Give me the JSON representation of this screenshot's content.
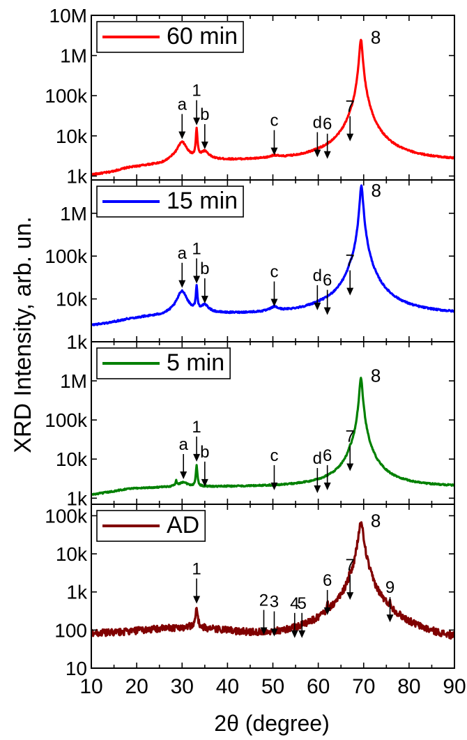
{
  "chart_data": [
    {
      "type": "line",
      "panel": "60 min",
      "legend": "60 min",
      "color": "#ff0000",
      "yscale": "log",
      "ylim": [
        800,
        10000000
      ],
      "xlim": [
        10,
        90
      ],
      "yticks": [
        {
          "v": 1000,
          "label": "1k"
        },
        {
          "v": 10000,
          "label": "10k"
        },
        {
          "v": 100000,
          "label": "100k"
        },
        {
          "v": 1000000,
          "label": "1M"
        },
        {
          "v": 10000000,
          "label": "10M"
        }
      ],
      "base": [
        [
          10,
          1000
        ],
        [
          14,
          1150
        ],
        [
          18,
          1500
        ],
        [
          22,
          1700
        ],
        [
          26,
          1850
        ],
        [
          28,
          2300
        ]
      ],
      "peaks": [
        {
          "x": 30.0,
          "h": 6800,
          "w": 1.1
        },
        {
          "x": 33.2,
          "h": 15000,
          "w": 0.15
        },
        {
          "x": 35.0,
          "h": 3800,
          "w": 1.0
        },
        {
          "x": 50.3,
          "h": 2700,
          "w": 1.0
        },
        {
          "x": 59.8,
          "h": 2400,
          "w": 1.2
        },
        {
          "x": 62.0,
          "h": 2200,
          "w": 0.15
        },
        {
          "x": 67.0,
          "h": 6000,
          "w": 0.3
        },
        {
          "x": 69.4,
          "h": 2500000,
          "w": 0.3
        }
      ],
      "annotations": [
        {
          "label": "a",
          "x": 30.0,
          "y": 6800
        },
        {
          "label": "1",
          "x": 33.2,
          "y": 15000
        },
        {
          "label": "b",
          "x": 35.0,
          "y": 3800
        },
        {
          "label": "c",
          "x": 50.3,
          "y": 2700
        },
        {
          "label": "d",
          "x": 59.8,
          "y": 2400
        },
        {
          "label": "6",
          "x": 62.0,
          "y": 2200
        },
        {
          "label": "7",
          "x": 67.0,
          "y": 6000
        },
        {
          "label": "8",
          "x": 69.4,
          "y": 2500000
        }
      ]
    },
    {
      "type": "line",
      "panel": "15 min",
      "legend": "15 min",
      "color": "#0000ff",
      "yscale": "log",
      "ylim": [
        1000,
        6000000
      ],
      "xlim": [
        10,
        90
      ],
      "yticks": [
        {
          "v": 1000,
          "label": "1k"
        },
        {
          "v": 10000,
          "label": "10k"
        },
        {
          "v": 100000,
          "label": "100k"
        },
        {
          "v": 1000000,
          "label": "1M"
        }
      ],
      "base": [
        [
          10,
          2300
        ],
        [
          14,
          2600
        ],
        [
          18,
          3200
        ],
        [
          22,
          3600
        ],
        [
          26,
          3800
        ],
        [
          28,
          4200
        ]
      ],
      "peaks": [
        {
          "x": 30.0,
          "h": 15000,
          "w": 1.1
        },
        {
          "x": 33.2,
          "h": 19000,
          "w": 0.15
        },
        {
          "x": 35.0,
          "h": 6500,
          "w": 1.0
        },
        {
          "x": 50.3,
          "h": 5500,
          "w": 1.0
        },
        {
          "x": 59.8,
          "h": 4500,
          "w": 1.2
        },
        {
          "x": 62.0,
          "h": 3500,
          "w": 0.15
        },
        {
          "x": 67.0,
          "h": 10000,
          "w": 0.3
        },
        {
          "x": 69.5,
          "h": 4500000,
          "w": 0.3
        }
      ],
      "annotations": [
        {
          "label": "a",
          "x": 30.0,
          "y": 15000
        },
        {
          "label": "1",
          "x": 33.2,
          "y": 19000
        },
        {
          "label": "b",
          "x": 35.0,
          "y": 6500
        },
        {
          "label": "c",
          "x": 50.3,
          "y": 5500
        },
        {
          "label": "d",
          "x": 59.8,
          "y": 4500
        },
        {
          "label": "6",
          "x": 62.0,
          "y": 3500
        },
        {
          "label": "7",
          "x": 67.0,
          "y": 10000
        },
        {
          "label": "8",
          "x": 69.5,
          "y": 4500000
        }
      ]
    },
    {
      "type": "line",
      "panel": "5 min",
      "legend": "5 min",
      "color": "#008000",
      "yscale": "log",
      "ylim": [
        700,
        10000000
      ],
      "xlim": [
        10,
        90
      ],
      "yticks": [
        {
          "v": 1000,
          "label": "1k"
        },
        {
          "v": 10000,
          "label": "10k"
        },
        {
          "v": 100000,
          "label": "100k"
        },
        {
          "v": 1000000,
          "label": "1M"
        }
      ],
      "base": [
        [
          10,
          1200
        ],
        [
          14,
          1400
        ],
        [
          18,
          1700
        ],
        [
          22,
          1800
        ],
        [
          26,
          1850
        ],
        [
          28,
          1900
        ]
      ],
      "peaks": [
        {
          "x": 28.7,
          "h": 2600,
          "w": 0.2
        },
        {
          "x": 30.3,
          "h": 2500,
          "w": 1.0
        },
        {
          "x": 33.2,
          "h": 7000,
          "w": 0.15
        },
        {
          "x": 35.0,
          "h": 1600,
          "w": 0.8
        },
        {
          "x": 50.3,
          "h": 1300,
          "w": 1.0
        },
        {
          "x": 59.8,
          "h": 1100,
          "w": 1.0
        },
        {
          "x": 62.0,
          "h": 1300,
          "w": 0.15
        },
        {
          "x": 67.0,
          "h": 4000,
          "w": 0.3
        },
        {
          "x": 69.4,
          "h": 1200000,
          "w": 0.3
        }
      ],
      "annotations": [
        {
          "label": "a",
          "x": 30.3,
          "y": 2500
        },
        {
          "label": "1",
          "x": 33.2,
          "y": 7000
        },
        {
          "label": "b",
          "x": 35.0,
          "y": 1600
        },
        {
          "label": "c",
          "x": 50.3,
          "y": 1300
        },
        {
          "label": "d",
          "x": 59.8,
          "y": 1100
        },
        {
          "label": "6",
          "x": 62.0,
          "y": 1300
        },
        {
          "label": "7",
          "x": 67.0,
          "y": 4000
        },
        {
          "label": "8",
          "x": 69.4,
          "y": 1200000
        }
      ]
    },
    {
      "type": "line",
      "panel": "AD",
      "legend": "AD",
      "color": "#800000",
      "yscale": "log",
      "ylim": [
        10,
        200000
      ],
      "xlim": [
        10,
        90
      ],
      "yticks": [
        {
          "v": 10,
          "label": "10"
        },
        {
          "v": 100,
          "label": "100"
        },
        {
          "v": 1000,
          "label": "1k"
        },
        {
          "v": 10000,
          "label": "10k"
        },
        {
          "v": 100000,
          "label": "100k"
        }
      ],
      "base": [
        [
          10,
          80
        ],
        [
          14,
          80
        ],
        [
          18,
          85
        ],
        [
          22,
          95
        ],
        [
          28,
          105
        ],
        [
          32,
          110
        ],
        [
          36,
          95
        ],
        [
          40,
          80
        ],
        [
          46,
          60
        ],
        [
          52,
          45
        ],
        [
          58,
          38
        ],
        [
          64,
          33
        ],
        [
          66,
          32
        ]
      ],
      "peaks": [
        {
          "x": 33.2,
          "h": 400,
          "w": 0.2
        },
        {
          "x": 48.0,
          "h": 60,
          "w": 0.2
        },
        {
          "x": 50.3,
          "h": 55,
          "w": 0.2
        },
        {
          "x": 54.8,
          "h": 50,
          "w": 0.2
        },
        {
          "x": 56.4,
          "h": 50,
          "w": 0.2
        },
        {
          "x": 62.0,
          "h": 200,
          "w": 0.2
        },
        {
          "x": 67.0,
          "h": 500,
          "w": 0.3
        },
        {
          "x": 69.4,
          "h": 65000,
          "w": 0.5
        },
        {
          "x": 75.8,
          "h": 130,
          "w": 0.3
        }
      ],
      "annotations": [
        {
          "label": "1",
          "x": 33.2,
          "y": 400
        },
        {
          "label": "2",
          "x": 48.0,
          "y": 60
        },
        {
          "label": "3",
          "x": 50.3,
          "y": 55
        },
        {
          "label": "4",
          "x": 54.8,
          "y": 50
        },
        {
          "label": "5",
          "x": 56.4,
          "y": 50
        },
        {
          "label": "6",
          "x": 62.0,
          "y": 200
        },
        {
          "label": "7",
          "x": 67.0,
          "y": 500
        },
        {
          "label": "8",
          "x": 69.4,
          "y": 65000
        },
        {
          "label": "9",
          "x": 75.8,
          "y": 130
        }
      ]
    }
  ],
  "axes": {
    "xlabel": "2θ (degree)",
    "ylabel": "XRD Intensity, arb. un.",
    "xticks": [
      10,
      20,
      30,
      40,
      50,
      60,
      70,
      80,
      90
    ]
  }
}
